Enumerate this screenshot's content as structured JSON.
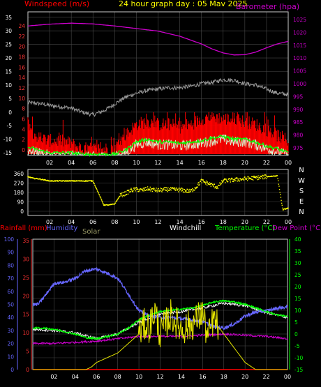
{
  "colors": {
    "background": "#000000",
    "plot_bg": "#000000",
    "frame": "#cccccc",
    "grid": "#4a4a4a",
    "tick_text": "#ffffff",
    "wind_red": "#ff0000",
    "gust_red": "#ff2020",
    "speed_green": "#00ff00",
    "speed_white": "#d8ffd8",
    "barometer": "#cc00cc",
    "temp_grey": "#9a9a9a",
    "direction": "#ffff00",
    "rain": "#ff0000",
    "humidity": "#6666ff",
    "solar": "#e6e600",
    "solar_label": "#999966",
    "windchill": "#ffffff",
    "temperature": "#00ff00",
    "dew_point": "#cc00cc",
    "title": "#ffff00",
    "footer_magenta": "#ff00ff",
    "footer_green": "#00ff00"
  },
  "header": {
    "left_label": "Windspeed (m/s)",
    "title": "24 hour graph day : 05 Mav 2025",
    "right_label": "Barometer (hpa)"
  },
  "x_ticks": [
    "02",
    "04",
    "06",
    "08",
    "10",
    "12",
    "14",
    "16",
    "18",
    "20",
    "22",
    "00"
  ],
  "panel1": {
    "left_ticks_white": [
      "35",
      "30",
      "25",
      "20",
      "15",
      "10",
      "5",
      "0",
      "-5",
      "-10",
      "-15"
    ],
    "left_ticks_red": [
      "24",
      "22",
      "20",
      "18",
      "16",
      "14",
      "12",
      "10",
      "8",
      "6",
      "4",
      "2",
      "0"
    ],
    "right_ticks": [
      "1025",
      "1020",
      "1015",
      "1010",
      "1005",
      "1000",
      "995",
      "990",
      "985",
      "980",
      "975"
    ]
  },
  "panel2": {
    "left_ticks": [
      "360",
      "270",
      "180",
      "90",
      "0"
    ],
    "right_labels": [
      "N",
      "W",
      "S",
      "E",
      "N"
    ]
  },
  "panel3": {
    "labels": {
      "rain": "Rainfall (mm)",
      "humidity": "Humidity",
      "solar": "Solar",
      "windchill": "Windchill",
      "temperature": "Temperature (°C)",
      "dew_point": "Dew Point (°C)"
    },
    "humidity_ticks": [
      "100",
      "90",
      "80",
      "70",
      "60",
      "50",
      "40",
      "30",
      "20",
      "10",
      "0"
    ],
    "rain_ticks": [
      "35",
      "30",
      "25",
      "20",
      "15",
      "10",
      "5",
      "0"
    ],
    "temp_ticks": [
      "40",
      "35",
      "30",
      "25",
      "20",
      "15",
      "10",
      "5",
      "0",
      "-5",
      "-10",
      "-15"
    ]
  },
  "chart_data": [
    {
      "type": "line",
      "x_unit": "hour",
      "xlim": [
        0,
        24
      ],
      "ylim_barometer": [
        972,
        1028
      ],
      "ylim_speed": [
        -16,
        37
      ],
      "series": [
        {
          "name": "Barometer (hpa)",
          "axis": "right",
          "x": [
            0,
            2,
            4,
            6,
            8,
            10,
            12,
            14,
            16,
            17,
            18,
            19,
            20,
            21,
            22,
            23,
            24
          ],
          "y": [
            1022.5,
            1023.2,
            1023.6,
            1023.3,
            1022.5,
            1021.5,
            1020.5,
            1018.5,
            1015.5,
            1013.5,
            1012,
            1011.2,
            1011.3,
            1012.3,
            1014,
            1015.5,
            1016.5
          ]
        },
        {
          "name": "Temperature trace (grey)",
          "axis": "left",
          "x": [
            0,
            1,
            2,
            3,
            4,
            5,
            6,
            7,
            8,
            9,
            10,
            11,
            12,
            13,
            14,
            15,
            16,
            17,
            18,
            19,
            20,
            21,
            22,
            23,
            24
          ],
          "y": [
            3.5,
            3.2,
            2.5,
            2,
            1.5,
            0,
            -1,
            0.5,
            3,
            5.5,
            7,
            8,
            8.5,
            9,
            9,
            9.5,
            10.5,
            11,
            12,
            11.8,
            10.5,
            10,
            8.5,
            7,
            6.5
          ]
        },
        {
          "name": "Wind gust (red)",
          "axis": "left",
          "x": [
            0,
            0.5,
            1,
            2,
            3,
            4,
            5,
            6,
            7,
            8,
            8.5,
            9,
            10,
            11,
            12,
            13,
            14,
            15,
            16,
            17,
            18,
            19,
            20,
            21,
            22,
            23,
            24
          ],
          "y": [
            -5,
            -9,
            -11,
            -12,
            -12,
            -13,
            -15,
            -15,
            -15,
            -15,
            -12,
            -10,
            -6,
            -5,
            -6,
            -6,
            -7,
            -6,
            -4,
            -3,
            -4,
            -4,
            -5,
            -6,
            -8,
            -10,
            -12
          ]
        },
        {
          "name": "Average wind (green)",
          "axis": "left",
          "x": [
            0,
            1,
            2,
            3,
            4,
            5,
            6,
            7,
            8,
            9,
            10,
            11,
            12,
            13,
            14,
            15,
            16,
            17,
            18,
            19,
            20,
            21,
            22,
            23,
            24
          ],
          "y": [
            -13,
            -14,
            -15,
            -15,
            -15,
            -15.5,
            -15.5,
            -15.5,
            -15.5,
            -14,
            -11,
            -10,
            -11,
            -11,
            -11.5,
            -11,
            -10.5,
            -9.5,
            -9,
            -10,
            -10,
            -11,
            -12.5,
            -13.5,
            -15
          ]
        }
      ]
    },
    {
      "type": "scatter",
      "x_unit": "hour",
      "xlim": [
        0,
        24
      ],
      "ylim": [
        0,
        360
      ],
      "series": [
        {
          "name": "Wind direction",
          "x": [
            0,
            0.5,
            1,
            1.5,
            2,
            3,
            4,
            5,
            6,
            7,
            7.5,
            8,
            8.5,
            9,
            9.5,
            10,
            10.5,
            11,
            12,
            13,
            14,
            15,
            15.5,
            16,
            16.5,
            17,
            17.5,
            18,
            19,
            20,
            21,
            22,
            23,
            23.5,
            24
          ],
          "y": [
            330,
            315,
            310,
            300,
            290,
            290,
            290,
            290,
            290,
            60,
            60,
            70,
            150,
            170,
            200,
            210,
            200,
            215,
            200,
            210,
            205,
            190,
            230,
            290,
            270,
            250,
            230,
            290,
            300,
            310,
            320,
            330,
            340,
            15,
            30
          ]
        }
      ]
    },
    {
      "type": "line",
      "x_unit": "hour",
      "xlim": [
        0,
        24
      ],
      "ylim_humidity": [
        0,
        100
      ],
      "ylim_temp": [
        -15,
        40
      ],
      "series": [
        {
          "name": "Humidity",
          "axis": "humidity",
          "x": [
            0,
            0.5,
            1,
            2,
            3,
            4,
            5,
            6,
            7,
            8,
            9,
            10,
            11,
            12,
            13,
            14,
            15,
            16,
            17,
            18,
            19,
            20,
            21,
            22,
            23,
            24
          ],
          "y": [
            50,
            50,
            55,
            66,
            67,
            70,
            76,
            77,
            74,
            70,
            58,
            45,
            41,
            40,
            40,
            39,
            38,
            37,
            33,
            32,
            35,
            41,
            44,
            45,
            47,
            48
          ]
        },
        {
          "name": "Temperature (°C)",
          "axis": "temp",
          "x": [
            0,
            1,
            2,
            3,
            4,
            5,
            6,
            7,
            8,
            9,
            10,
            11,
            12,
            13,
            14,
            15,
            16,
            17,
            18,
            19,
            20,
            21,
            22,
            23,
            24
          ],
          "y": [
            2.5,
            2.5,
            2,
            1,
            0,
            -1.5,
            -2,
            -1,
            0,
            2.5,
            6,
            8,
            9.5,
            10,
            10.5,
            11,
            12,
            13.5,
            14,
            13.5,
            12.5,
            11,
            9.5,
            8,
            7.5
          ]
        },
        {
          "name": "Dew Point (°C)",
          "axis": "temp",
          "x": [
            0,
            2,
            4,
            6,
            8,
            10,
            12,
            14,
            16,
            18,
            20,
            22,
            24
          ],
          "y": [
            -4,
            -4,
            -3.5,
            -3,
            -2,
            -1,
            -1,
            -1,
            -0.5,
            0,
            -0.5,
            -1,
            -2
          ]
        },
        {
          "name": "Windchill",
          "axis": "temp",
          "x": [
            0,
            2,
            4,
            6,
            8,
            10,
            12,
            14,
            16,
            18,
            20,
            22,
            24
          ],
          "y": [
            2,
            1.5,
            0.5,
            -2,
            0,
            5,
            8.5,
            9.5,
            11,
            13,
            12,
            9,
            7
          ]
        },
        {
          "name": "Solar",
          "axis": "temp",
          "x": [
            0,
            5,
            5.5,
            6,
            6.5,
            7,
            8,
            9,
            10,
            10.5,
            11,
            11.5,
            12,
            13,
            14,
            15,
            16,
            16.5,
            17,
            18,
            19,
            20,
            21,
            22,
            24
          ],
          "y": [
            -15,
            -15,
            -14,
            -12,
            -11,
            -10,
            -8,
            -4,
            0,
            4,
            3,
            10,
            0,
            8,
            2,
            4,
            9,
            -2,
            6,
            0,
            -6,
            -12,
            -15,
            -15,
            -15
          ]
        },
        {
          "name": "Rainfall (mm)",
          "axis": "temp",
          "x": [
            0,
            24
          ],
          "y": [
            -15,
            -15
          ]
        }
      ]
    }
  ]
}
